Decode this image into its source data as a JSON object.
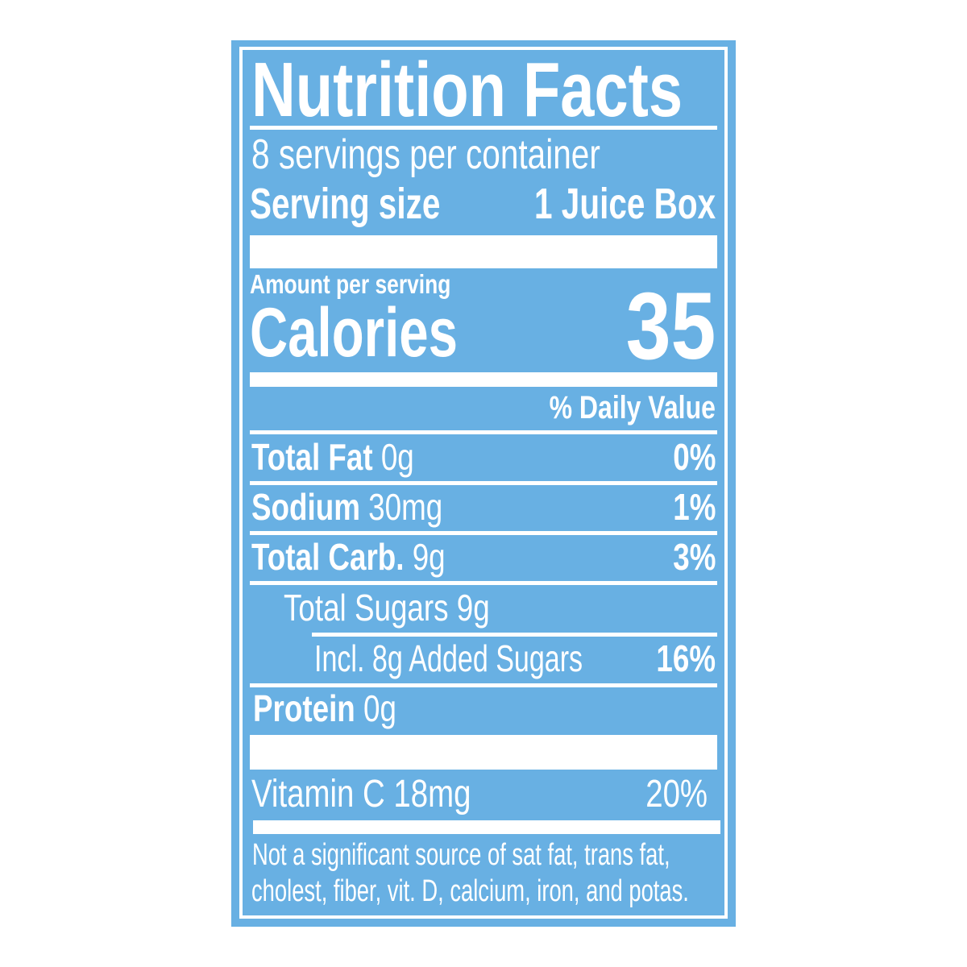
{
  "colors": {
    "background": "#68b0e3",
    "foreground": "#ffffff"
  },
  "title": "Nutrition Facts",
  "servings_per_container": "8 servings per container",
  "serving_size": {
    "label": "Serving size",
    "value": "1 Juice Box"
  },
  "amount_per_serving": "Amount per serving",
  "calories": {
    "label": "Calories",
    "value": "35"
  },
  "daily_value_header": "% Daily Value",
  "nutrients": [
    {
      "name": "Total Fat",
      "amount": "0g",
      "dv": "0%"
    },
    {
      "name": "Sodium",
      "amount": "30mg",
      "dv": "1%"
    },
    {
      "name": "Total Carb.",
      "amount": "9g",
      "dv": "3%"
    },
    {
      "name": "Total Sugars 9g"
    },
    {
      "name": "Incl. 8g Added Sugars",
      "dv": "16%"
    },
    {
      "name": "Protein",
      "amount": "0g"
    }
  ],
  "vitamins": [
    {
      "name": "Vitamin C 18mg",
      "dv": "20%"
    }
  ],
  "footnote": [
    "Not a significant source of sat fat, trans fat,",
    "cholest, fiber, vit. D, calcium, iron, and potas."
  ]
}
